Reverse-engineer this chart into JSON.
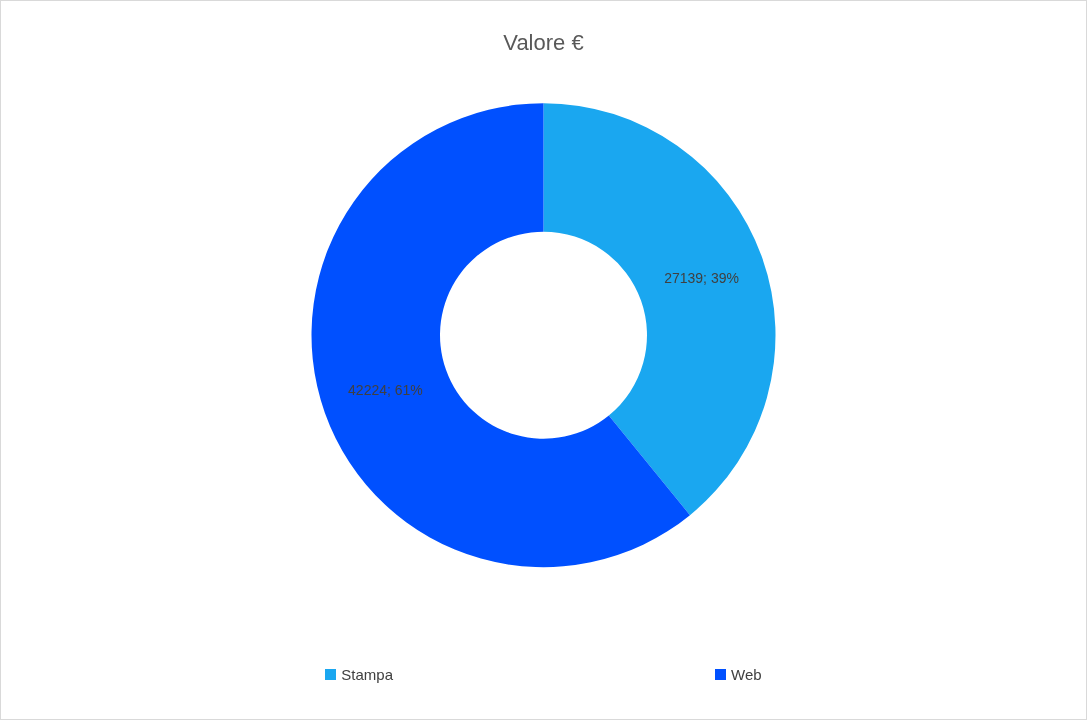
{
  "chart_data": {
    "type": "donut",
    "title": "Valore €",
    "categories": [
      "Stampa",
      "Web"
    ],
    "values": [
      27139,
      42224
    ],
    "colors": [
      "#1aa7f0",
      "#0050ff"
    ],
    "value_labels": [
      "27139; 39%",
      "42224; 61%"
    ],
    "legend": "bottom"
  }
}
